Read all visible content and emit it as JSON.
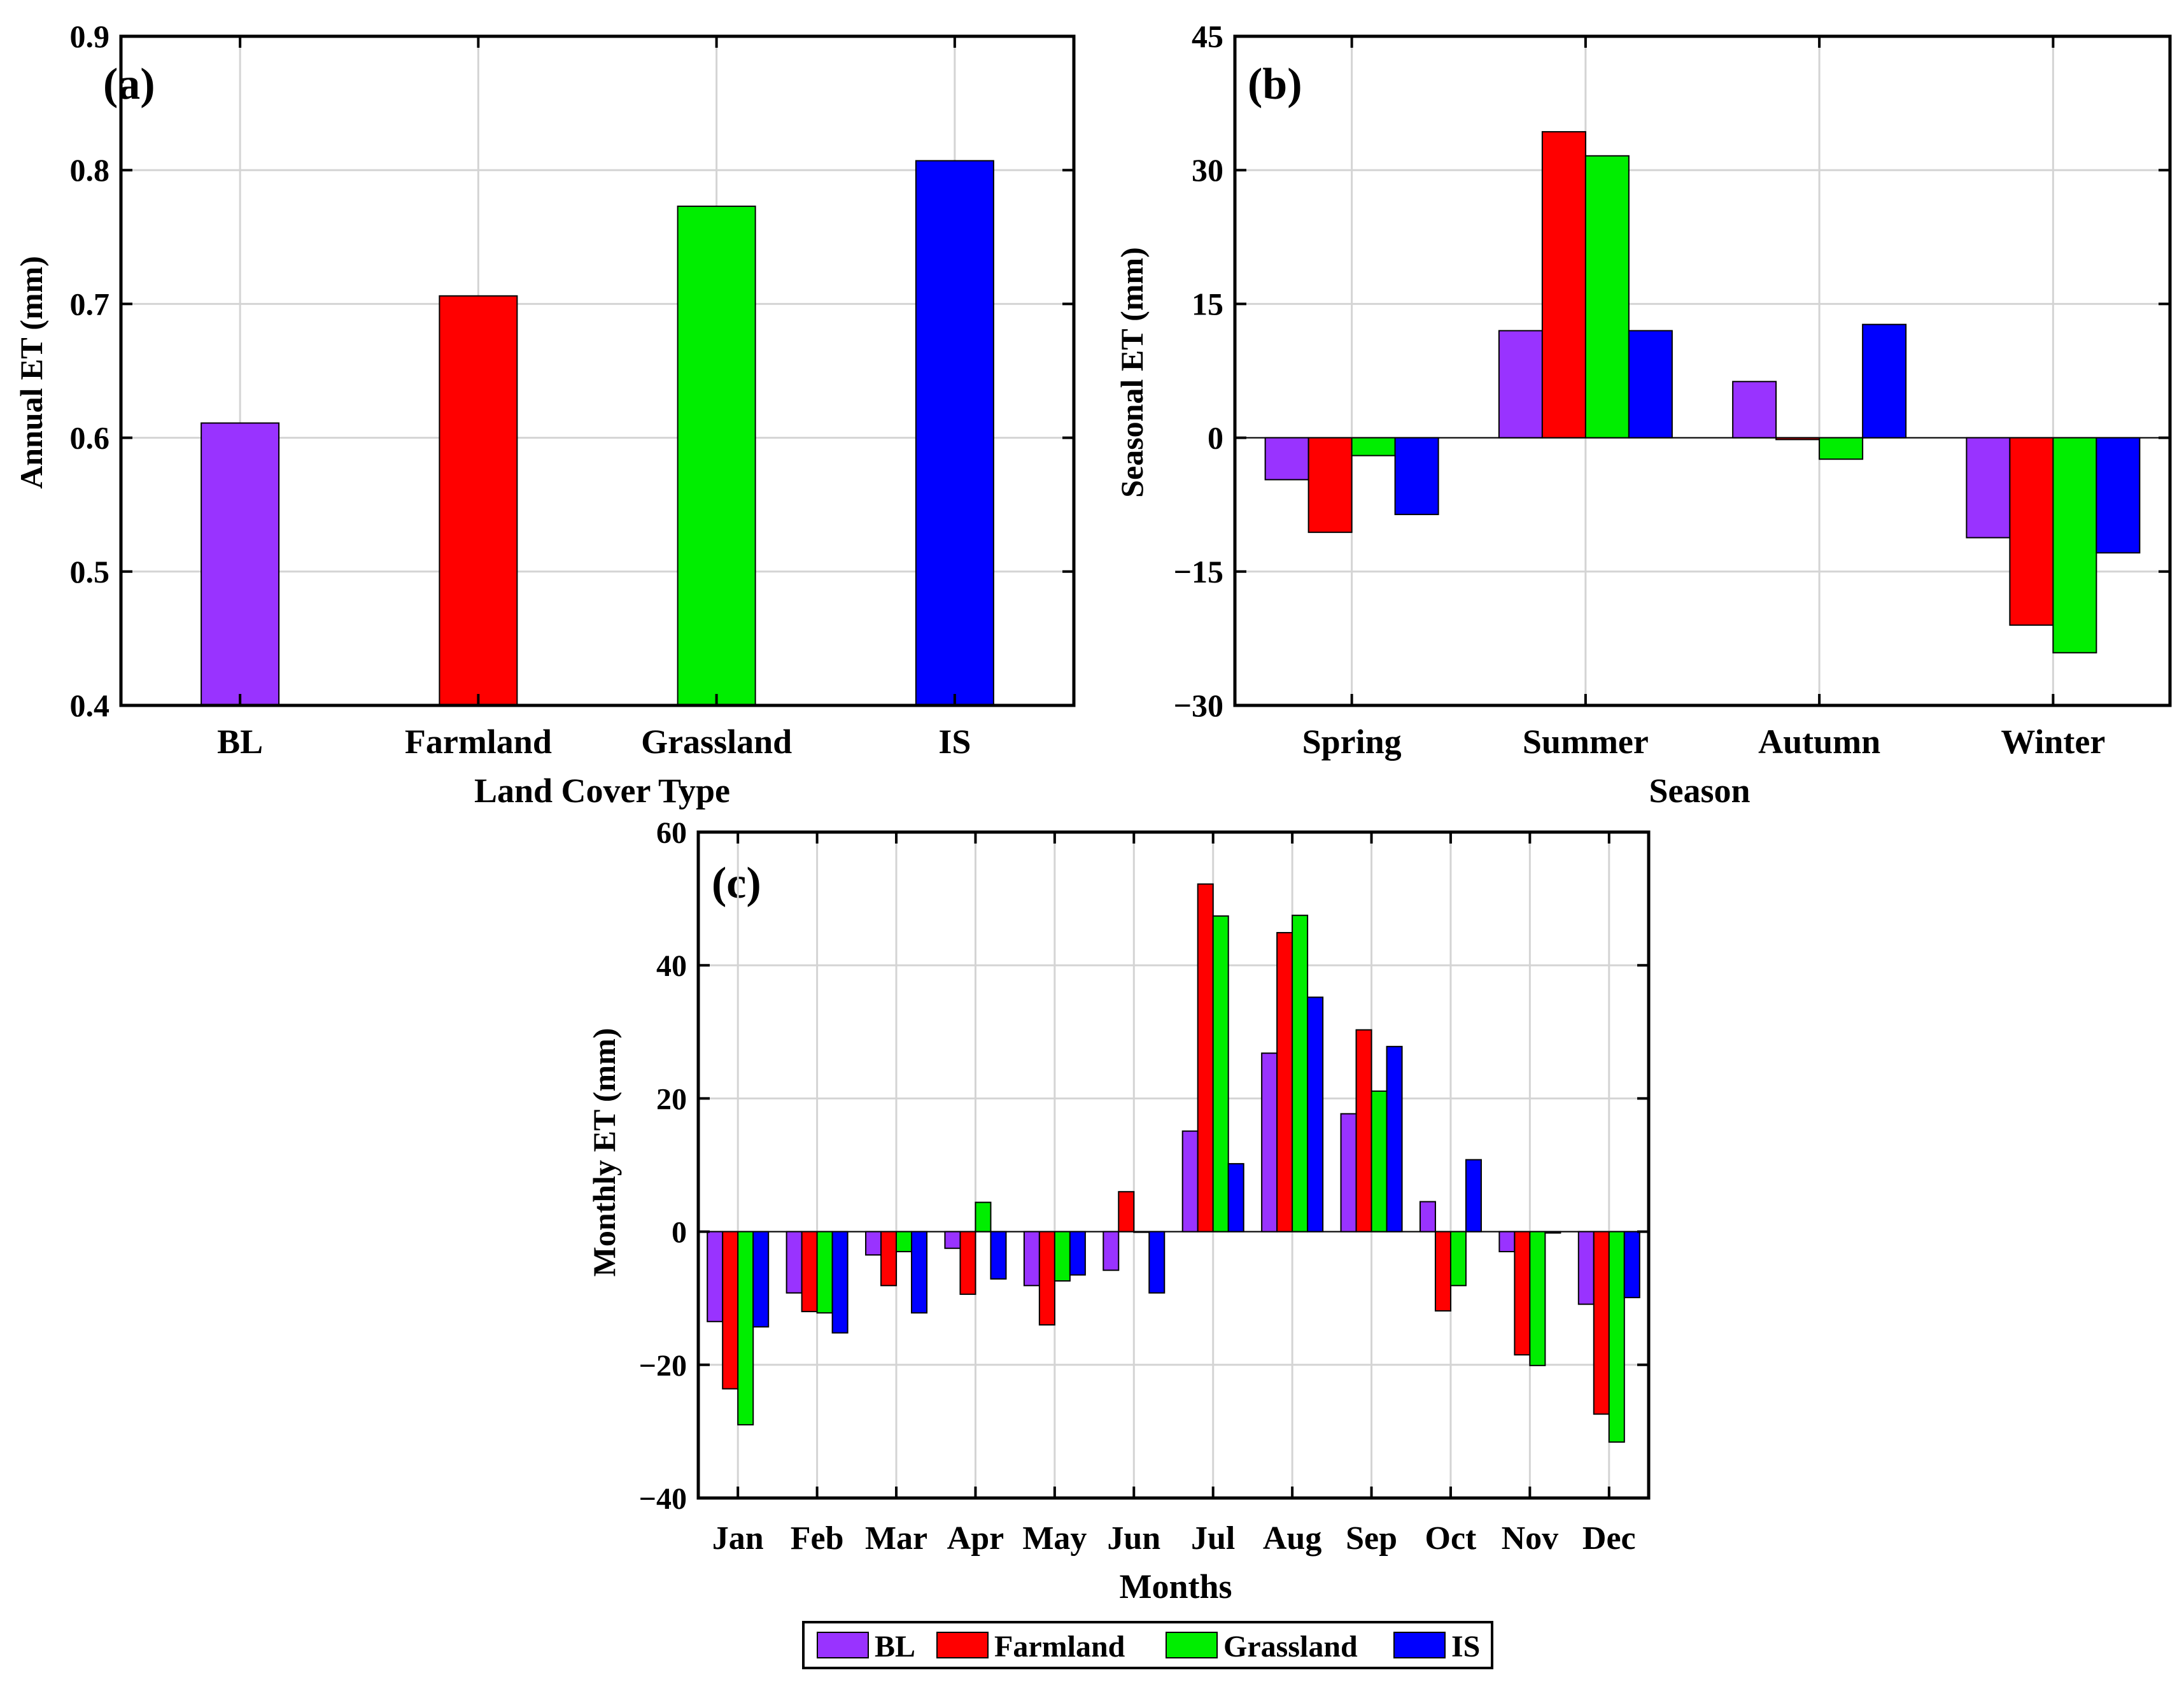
{
  "colors": {
    "BL": "#9933FF",
    "Farmland": "#FF0000",
    "Grassland": "#00EE00",
    "IS": "#0000FF"
  },
  "legend": {
    "entries": [
      "BL",
      "Farmland",
      "Grassland",
      "IS"
    ]
  },
  "chart_data": [
    {
      "id": "a",
      "type": "bar",
      "panel_label": "(a)",
      "title": "",
      "xlabel": "Land Cover Type",
      "ylabel": "Annual  ET (mm)",
      "categories": [
        "BL",
        "Farmland",
        "Grassland",
        "IS"
      ],
      "values": [
        0.611,
        0.706,
        0.773,
        0.807
      ],
      "ylim": [
        0.4,
        0.9
      ],
      "yticks": [
        0.4,
        0.5,
        0.6,
        0.7,
        0.8,
        0.9
      ],
      "ytick_labels": [
        "0.4",
        "0.5",
        "0.6",
        "0.7",
        "0.8",
        "0.9"
      ],
      "grid": true
    },
    {
      "id": "b",
      "type": "bar",
      "panel_label": "(b)",
      "title": "",
      "xlabel": "Season",
      "ylabel": "Seasonal  ET (mm)",
      "categories": [
        "Spring",
        "Summer",
        "Autumn",
        "Winter"
      ],
      "series": [
        {
          "name": "BL",
          "values": [
            -4.7,
            12.0,
            6.3,
            -11.2
          ]
        },
        {
          "name": "Farmland",
          "values": [
            -10.6,
            34.3,
            -0.2,
            -21.0
          ]
        },
        {
          "name": "Grassland",
          "values": [
            -2.0,
            31.6,
            -2.4,
            -24.1
          ]
        },
        {
          "name": "IS",
          "values": [
            -8.6,
            12.0,
            12.7,
            -12.9
          ]
        }
      ],
      "ylim": [
        -30,
        45
      ],
      "yticks": [
        -30,
        -15,
        0,
        15,
        30,
        45
      ],
      "ytick_labels": [
        "−30",
        "−15",
        "0",
        "15",
        "30",
        "45"
      ],
      "grid": true
    },
    {
      "id": "c",
      "type": "bar",
      "panel_label": "(c)",
      "title": "",
      "xlabel": "Months",
      "ylabel": "Monthly  ET (mm)",
      "categories": [
        "Jan",
        "Feb",
        "Mar",
        "Apr",
        "May",
        "Jun",
        "Jul",
        "Aug",
        "Sep",
        "Oct",
        "Nov",
        "Dec"
      ],
      "series": [
        {
          "name": "BL",
          "values": [
            -13.5,
            -9.2,
            -3.5,
            -2.5,
            -8.1,
            -5.8,
            15.1,
            26.8,
            17.7,
            4.5,
            -3.0,
            -10.9
          ]
        },
        {
          "name": "Farmland",
          "values": [
            -23.6,
            -12.0,
            -8.1,
            -9.4,
            -14.0,
            6.0,
            52.2,
            44.9,
            30.3,
            -11.9,
            -18.5,
            -27.4
          ]
        },
        {
          "name": "Grassland",
          "values": [
            -29.0,
            -12.2,
            -3.0,
            4.4,
            -7.4,
            0.0,
            47.4,
            47.5,
            21.1,
            -8.1,
            -20.1,
            -31.6
          ]
        },
        {
          "name": "IS",
          "values": [
            -14.3,
            -15.2,
            -12.2,
            -7.1,
            -6.5,
            -9.2,
            10.2,
            35.2,
            27.8,
            10.8,
            -0.2,
            -9.9
          ]
        }
      ],
      "ylim": [
        -40,
        60
      ],
      "yticks": [
        -40,
        -20,
        0,
        20,
        40,
        60
      ],
      "ytick_labels": [
        "−40",
        "−20",
        "0",
        "20",
        "40",
        "60"
      ],
      "grid": true
    }
  ]
}
